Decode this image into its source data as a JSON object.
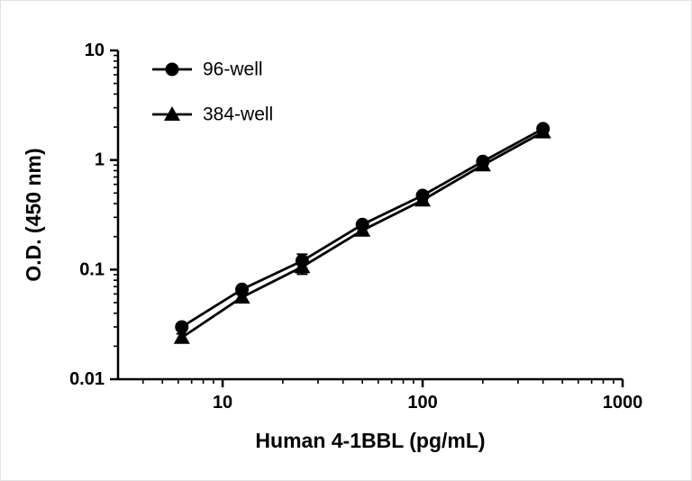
{
  "figure": {
    "background": "#ffffff",
    "axis_color": "#000000",
    "plot_color": "#000000"
  },
  "chart_data": {
    "type": "line",
    "title": "",
    "xlabel": "Human 4-1BBL (pg/mL)",
    "ylabel": "O.D. (450 nm)",
    "x_scale": "log",
    "y_scale": "log",
    "xlim": [
      3,
      1000
    ],
    "ylim": [
      0.01,
      10
    ],
    "x_ticks": [
      10,
      100,
      1000
    ],
    "x_tick_labels": [
      "10",
      "100",
      "1000"
    ],
    "y_ticks": [
      0.01,
      0.1,
      1,
      10
    ],
    "y_tick_labels": [
      "0.01",
      "0.1",
      "1",
      "10"
    ],
    "grid": false,
    "legend_position": "top-left",
    "x": [
      6.25,
      12.5,
      25,
      50,
      100,
      200,
      400
    ],
    "series": [
      {
        "name": "96-well",
        "marker": "circle",
        "color": "#000000",
        "values": [
          0.03,
          0.066,
          0.12,
          0.258,
          0.475,
          0.97,
          1.93
        ],
        "errors": [
          0.002,
          0.003,
          0.018,
          0.008,
          0.01,
          0.015,
          0.03
        ]
      },
      {
        "name": "384-well",
        "marker": "triangle",
        "color": "#000000",
        "values": [
          0.024,
          0.056,
          0.106,
          0.228,
          0.43,
          0.9,
          1.8
        ],
        "errors": [
          0.002,
          0.003,
          0.015,
          0.007,
          0.009,
          0.014,
          0.028
        ]
      }
    ]
  }
}
